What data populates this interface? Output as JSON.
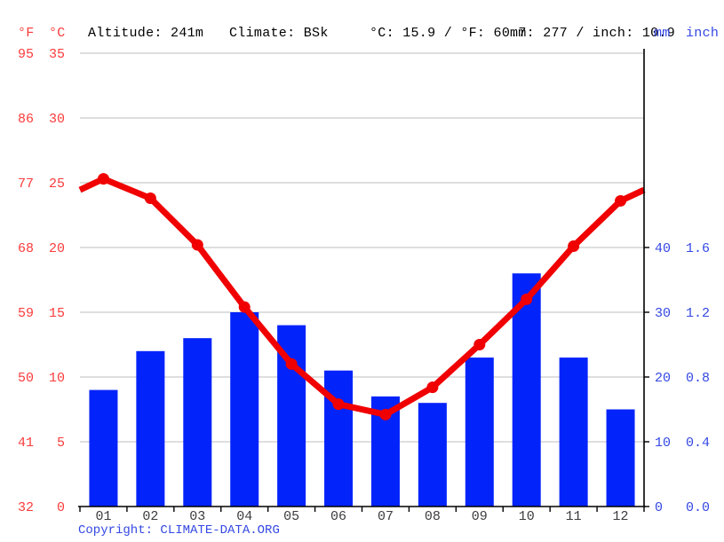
{
  "header": {
    "f_label": "°F",
    "c_label": "°C",
    "altitude": "Altitude: 241m",
    "climate": "Climate: BSk",
    "temp_summary": "°C: 15.9 / °F: 60.7",
    "precip_summary": "mm: 277 / inch: 10.9",
    "mm_label": "mm",
    "inch_label": "inch"
  },
  "footer": {
    "copyright_label": "Copyright: ",
    "source_link": "CLIMATE-DATA.ORG"
  },
  "colors": {
    "bar_blue": "#0223fa",
    "line_red": "#f00000",
    "label_red": "#fb3b3b",
    "label_blue": "#3448e3",
    "month_gray": "#3c3c3c",
    "grid_gray": "#c9c9c9",
    "axis_black": "#000000"
  },
  "chart_data": {
    "type": "bar",
    "categories": [
      "01",
      "02",
      "03",
      "04",
      "05",
      "06",
      "07",
      "08",
      "09",
      "10",
      "11",
      "12"
    ],
    "series": [
      {
        "name": "Precipitation (mm)",
        "type": "bar",
        "values": [
          18,
          24,
          26,
          30,
          28,
          21,
          17,
          16,
          23,
          36,
          23,
          15
        ]
      },
      {
        "name": "Average temperature (°C)",
        "type": "line",
        "values": [
          25.3,
          23.8,
          20.2,
          15.4,
          11.0,
          7.9,
          7.1,
          9.2,
          12.5,
          16.0,
          20.1,
          23.6
        ]
      }
    ],
    "axes": {
      "left_f_ticks": [
        95,
        86,
        77,
        68,
        59,
        50,
        41,
        32
      ],
      "left_c_ticks": [
        35,
        30,
        25,
        20,
        15,
        10,
        5,
        0
      ],
      "right_mm_ticks": [
        40,
        30,
        20,
        10,
        0
      ],
      "right_inch_ticks": [
        "1.6",
        "1.2",
        "0.8",
        "0.4",
        "0.0"
      ],
      "c_range": [
        0,
        35
      ],
      "mm_range": [
        0,
        70
      ]
    },
    "grid": true,
    "legend": "none"
  }
}
